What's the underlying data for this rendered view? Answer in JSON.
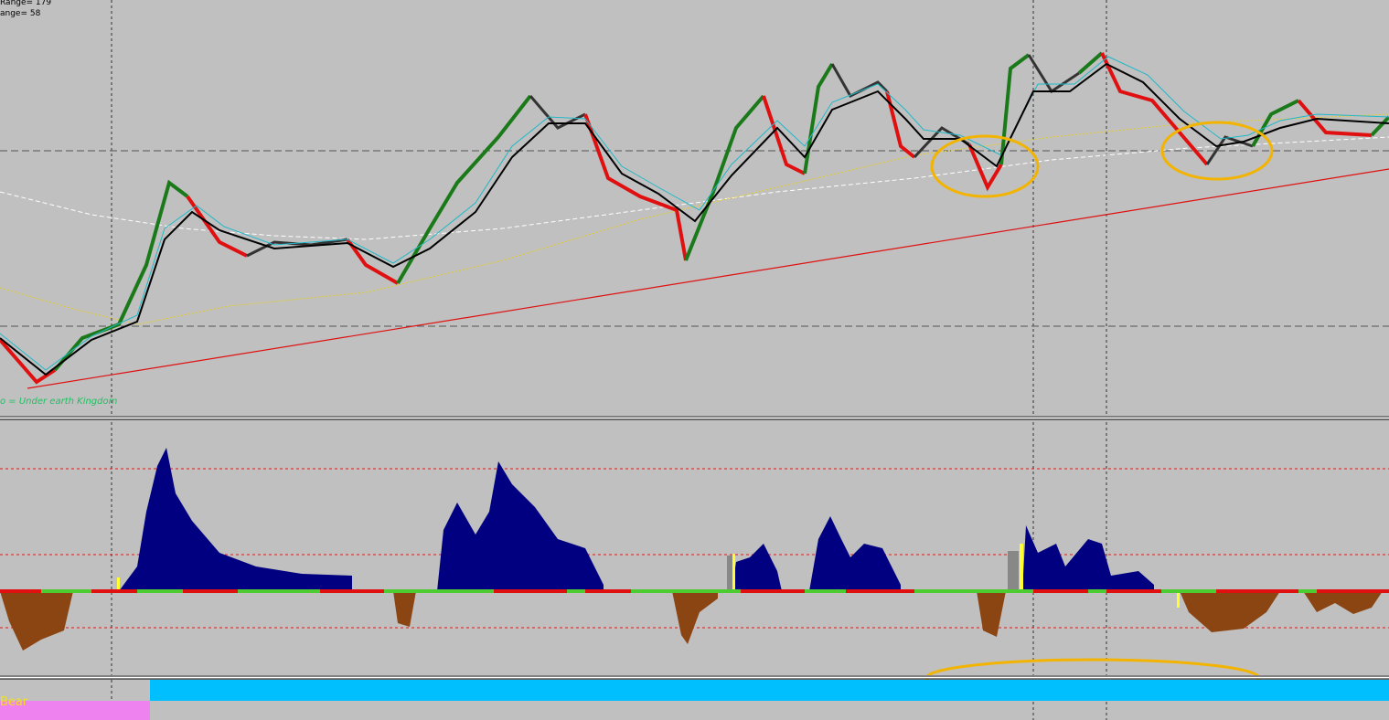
{
  "header": {
    "range_1": "Range= 179",
    "range_2": "ange= 58"
  },
  "main_panel": {
    "label": "o = Under earth Kingdom"
  },
  "bottom_panel": {
    "label": "Bear"
  }
}
